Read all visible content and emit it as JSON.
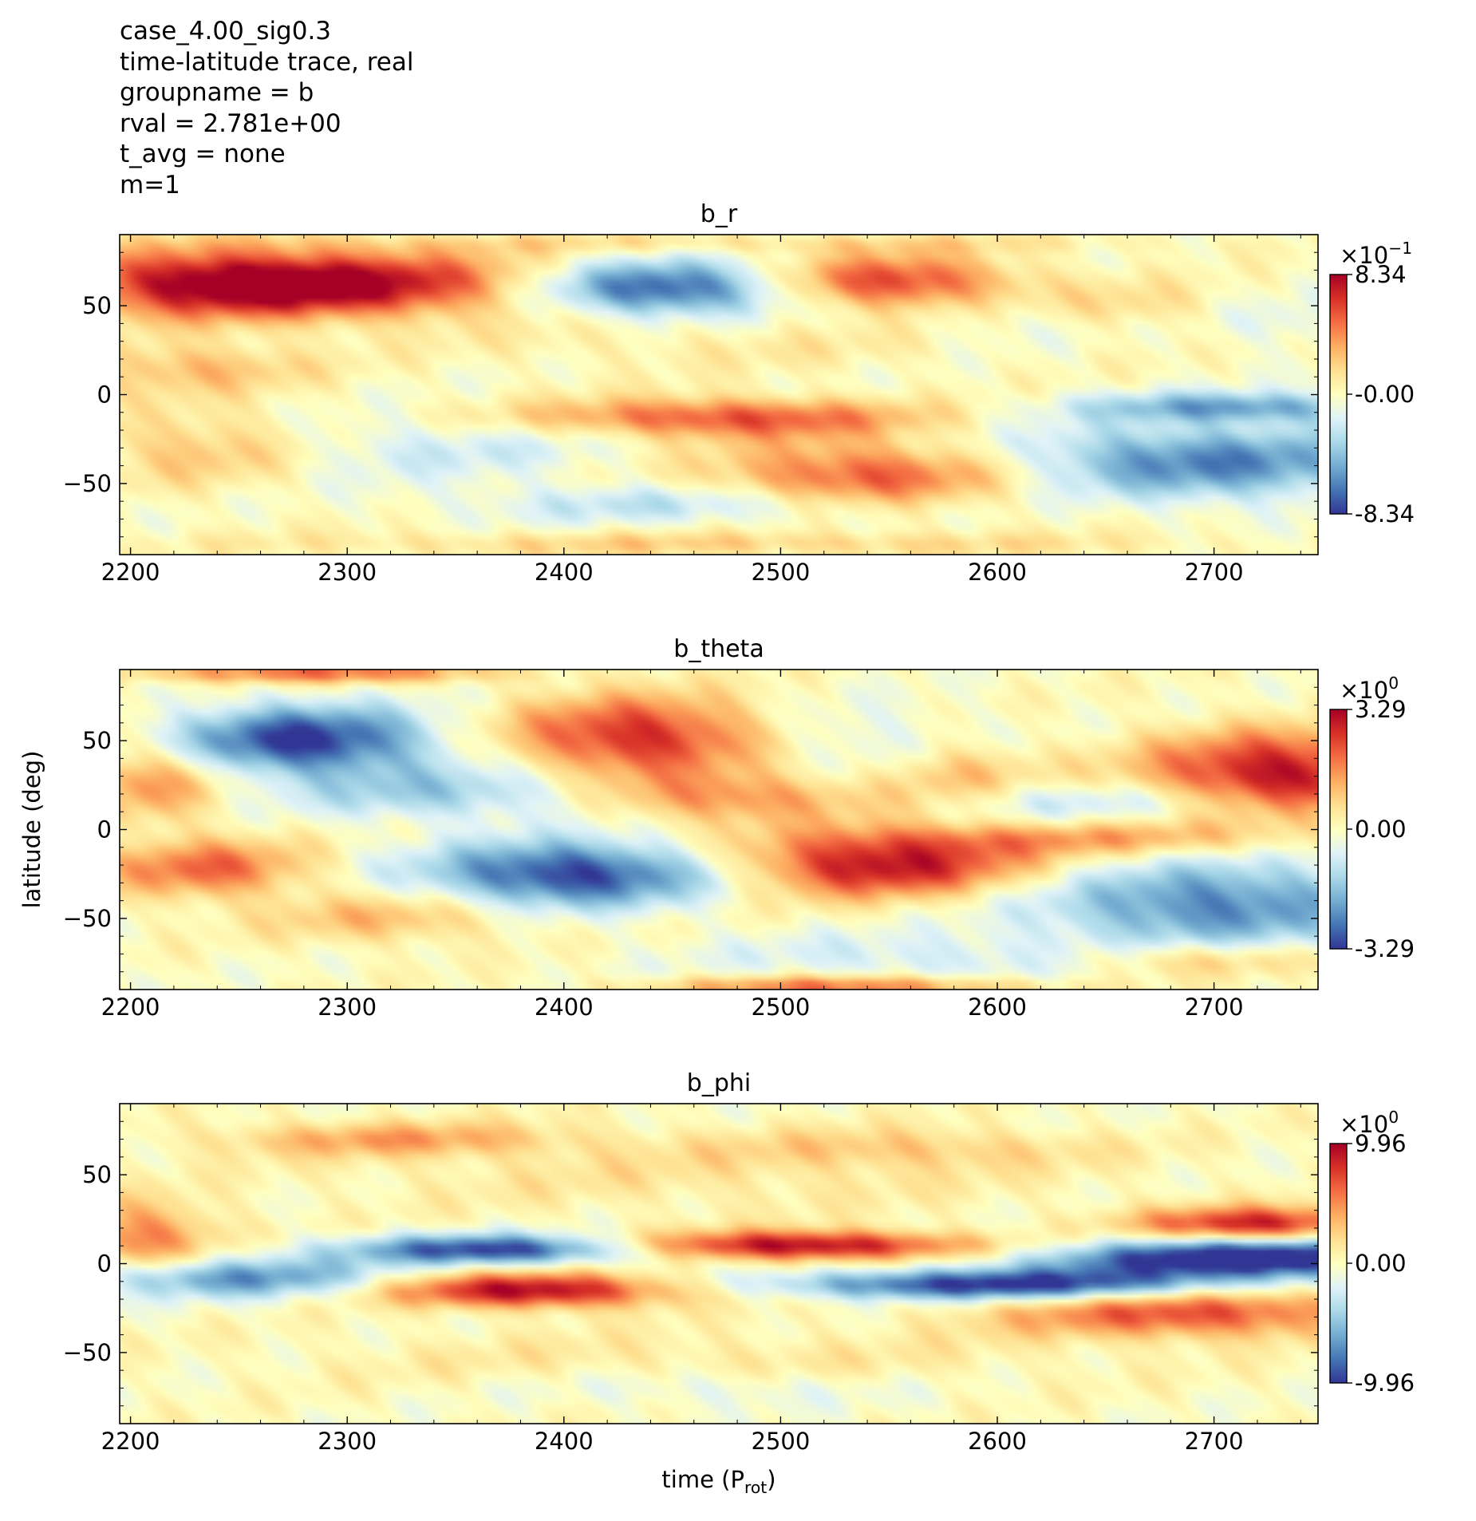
{
  "header_lines": [
    "case_4.00_sig0.3",
    "time-latitude trace, real",
    "groupname = b",
    "rval = 2.781e+00",
    "t_avg = none",
    "m=1"
  ],
  "colormap": [
    "#313695",
    "#4575b4",
    "#74add1",
    "#abd9e9",
    "#e0f3f8",
    "#ffffbf",
    "#fee090",
    "#fdae61",
    "#f46d43",
    "#d73027",
    "#a50026"
  ],
  "chart_data": [
    {
      "type": "heatmap",
      "title": "b_r",
      "xlabel": "",
      "ylabel": "",
      "xlim": [
        2195,
        2748
      ],
      "ylim": [
        -90,
        90
      ],
      "xticks": [
        "2200",
        "2300",
        "2400",
        "2500",
        "2600",
        "2700"
      ],
      "yticks": [
        "50",
        "0",
        "−50"
      ],
      "colorbar": {
        "exponent_label": "×10",
        "exponent": "−1",
        "max_label": "8.34",
        "mid_label": "-0.00",
        "min_label": "-8.34",
        "vmin": -0.834,
        "vmax": 0.834
      },
      "features": [
        {
          "t": 2300,
          "lat": 62,
          "amp": 0.95,
          "st": 70,
          "sl": 13
        },
        {
          "t": 2232,
          "lat": 63,
          "amp": 0.55,
          "st": 45,
          "sl": 14
        },
        {
          "t": 2445,
          "lat": 60,
          "amp": -1.0,
          "st": 45,
          "sl": 11
        },
        {
          "t": 2550,
          "lat": 63,
          "amp": 0.8,
          "st": 42,
          "sl": 11
        },
        {
          "t": 2660,
          "lat": 48,
          "amp": 0.3,
          "st": 40,
          "sl": 10
        },
        {
          "t": 2610,
          "lat": 45,
          "amp": -0.22,
          "st": 35,
          "sl": 12
        },
        {
          "t": 2730,
          "lat": 42,
          "amp": -0.22,
          "st": 40,
          "sl": 10
        },
        {
          "t": 2225,
          "lat": 15,
          "amp": 0.35,
          "st": 40,
          "sl": 10
        },
        {
          "t": 2470,
          "lat": -13,
          "amp": 0.7,
          "st": 65,
          "sl": 8
        },
        {
          "t": 2545,
          "lat": -45,
          "amp": 0.75,
          "st": 55,
          "sl": 14
        },
        {
          "t": 2235,
          "lat": -30,
          "amp": 0.35,
          "st": 35,
          "sl": 15
        },
        {
          "t": 2345,
          "lat": -30,
          "amp": -0.25,
          "st": 65,
          "sl": 14
        },
        {
          "t": 2460,
          "lat": -62,
          "amp": -0.35,
          "st": 70,
          "sl": 8
        },
        {
          "t": 2690,
          "lat": -38,
          "amp": -0.75,
          "st": 75,
          "sl": 15
        },
        {
          "t": 2710,
          "lat": -7,
          "amp": -0.6,
          "st": 50,
          "sl": 6
        },
        {
          "t": 2480,
          "lat": 28,
          "amp": 0.12,
          "st": 90,
          "sl": 10
        },
        {
          "t": 2470,
          "lat": -84,
          "amp": 0.25,
          "st": 150,
          "sl": 5
        },
        {
          "t": 2470,
          "lat": 85,
          "amp": 0.18,
          "st": 150,
          "sl": 4
        }
      ]
    },
    {
      "type": "heatmap",
      "title": "b_theta",
      "xlabel": "",
      "ylabel": "latitude (deg)",
      "xlim": [
        2195,
        2748
      ],
      "ylim": [
        -90,
        90
      ],
      "xticks": [
        "2200",
        "2300",
        "2400",
        "2500",
        "2600",
        "2700"
      ],
      "yticks": [
        "50",
        "0",
        "−50"
      ],
      "colorbar": {
        "exponent_label": "×10",
        "exponent": "0",
        "max_label": "3.29",
        "mid_label": "0.00",
        "min_label": "-3.29",
        "vmin": -3.29,
        "vmax": 3.29
      },
      "features": [
        {
          "t": 2280,
          "lat": 50,
          "amp": -1.0,
          "st": 45,
          "sl": 14
        },
        {
          "t": 2360,
          "lat": 20,
          "amp": -0.45,
          "st": 60,
          "sl": 11
        },
        {
          "t": 2210,
          "lat": 28,
          "amp": 0.5,
          "st": 25,
          "sl": 16
        },
        {
          "t": 2435,
          "lat": 52,
          "amp": 0.85,
          "st": 45,
          "sl": 16
        },
        {
          "t": 2470,
          "lat": 18,
          "amp": 0.55,
          "st": 50,
          "sl": 10
        },
        {
          "t": 2580,
          "lat": 33,
          "amp": 0.35,
          "st": 25,
          "sl": 12
        },
        {
          "t": 2730,
          "lat": 32,
          "amp": 0.95,
          "st": 45,
          "sl": 16
        },
        {
          "t": 2530,
          "lat": 50,
          "amp": -0.25,
          "st": 40,
          "sl": 15
        },
        {
          "t": 2650,
          "lat": 15,
          "amp": -0.3,
          "st": 50,
          "sl": 8
        },
        {
          "t": 2235,
          "lat": -22,
          "amp": 0.6,
          "st": 35,
          "sl": 12
        },
        {
          "t": 2405,
          "lat": -25,
          "amp": -1.0,
          "st": 50,
          "sl": 13
        },
        {
          "t": 2545,
          "lat": -20,
          "amp": 0.95,
          "st": 50,
          "sl": 13
        },
        {
          "t": 2700,
          "lat": -42,
          "amp": -0.75,
          "st": 60,
          "sl": 17
        },
        {
          "t": 2640,
          "lat": -5,
          "amp": 0.4,
          "st": 70,
          "sl": 7
        },
        {
          "t": 2320,
          "lat": -50,
          "amp": 0.35,
          "st": 40,
          "sl": 10
        },
        {
          "t": 2560,
          "lat": -72,
          "amp": -0.25,
          "st": 70,
          "sl": 10
        },
        {
          "t": 2690,
          "lat": -73,
          "amp": 0.35,
          "st": 40,
          "sl": 7
        },
        {
          "t": 2530,
          "lat": -88,
          "amp": 0.6,
          "st": 60,
          "sl": 4
        },
        {
          "t": 2280,
          "lat": 88,
          "amp": 0.6,
          "st": 60,
          "sl": 4
        }
      ]
    },
    {
      "type": "heatmap",
      "title": "b_phi",
      "xlabel": "time (P_rot)",
      "ylabel": "",
      "xlim": [
        2195,
        2748
      ],
      "ylim": [
        -90,
        90
      ],
      "xticks": [
        "2200",
        "2300",
        "2400",
        "2500",
        "2600",
        "2700"
      ],
      "yticks": [
        "50",
        "0",
        "−50"
      ],
      "colorbar": {
        "exponent_label": "×10",
        "exponent": "0",
        "max_label": "9.96",
        "mid_label": "0.00",
        "min_label": "-9.96",
        "vmin": -9.96,
        "vmax": 9.96
      },
      "features": [
        {
          "t": 2370,
          "lat": 8,
          "amp": -1.0,
          "st": 50,
          "sl": 6
        },
        {
          "t": 2250,
          "lat": -8,
          "amp": -0.7,
          "st": 50,
          "sl": 8
        },
        {
          "t": 2385,
          "lat": -15,
          "amp": 1.0,
          "st": 48,
          "sl": 7
        },
        {
          "t": 2510,
          "lat": 10,
          "amp": 1.0,
          "st": 60,
          "sl": 6
        },
        {
          "t": 2600,
          "lat": -12,
          "amp": -1.05,
          "st": 70,
          "sl": 6
        },
        {
          "t": 2720,
          "lat": 3,
          "amp": -1.25,
          "st": 70,
          "sl": 8
        },
        {
          "t": 2720,
          "lat": 22,
          "amp": 0.9,
          "st": 40,
          "sl": 7
        },
        {
          "t": 2690,
          "lat": -28,
          "amp": 0.7,
          "st": 65,
          "sl": 10
        },
        {
          "t": 2205,
          "lat": 15,
          "amp": 0.55,
          "st": 25,
          "sl": 14
        },
        {
          "t": 2320,
          "lat": 70,
          "amp": 0.4,
          "st": 60,
          "sl": 7
        },
        {
          "t": 2560,
          "lat": 65,
          "amp": 0.25,
          "st": 60,
          "sl": 8
        },
        {
          "t": 2470,
          "lat": -70,
          "amp": -0.2,
          "st": 60,
          "sl": 8
        },
        {
          "t": 2460,
          "lat": 50,
          "amp": 0.15,
          "st": 120,
          "sl": 15
        },
        {
          "t": 2460,
          "lat": -55,
          "amp": 0.15,
          "st": 120,
          "sl": 12
        }
      ]
    }
  ]
}
